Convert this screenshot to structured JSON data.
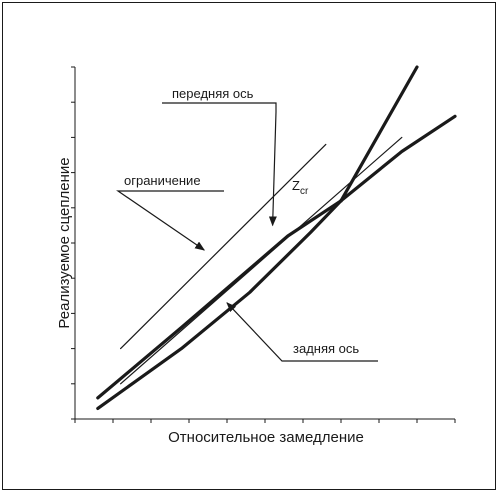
{
  "chart_data": {
    "type": "line",
    "title": "",
    "xlabel": "Относительное замедление",
    "ylabel": "Реализуемое сцепление",
    "xlim": [
      0,
      1
    ],
    "ylim": [
      0,
      1
    ],
    "grid": false,
    "x_tick_count": 10,
    "y_tick_count": 11,
    "series": [
      {
        "id": "front",
        "points": [
          [
            0.06,
            0.06
          ],
          [
            0.28,
            0.26
          ],
          [
            0.56,
            0.52
          ],
          [
            0.7,
            0.62
          ],
          [
            0.86,
            0.76
          ],
          [
            1.0,
            0.86
          ]
        ]
      },
      {
        "id": "rear",
        "points": [
          [
            0.06,
            0.03
          ],
          [
            0.28,
            0.2
          ],
          [
            0.46,
            0.36
          ],
          [
            0.62,
            0.53
          ],
          [
            0.7,
            0.62
          ],
          [
            0.8,
            0.81
          ],
          [
            0.9,
            1.0
          ]
        ]
      },
      {
        "id": "limit",
        "points": [
          [
            0.12,
            0.2
          ],
          [
            0.66,
            0.78
          ]
        ]
      },
      {
        "id": "ideal",
        "points": [
          [
            0.12,
            0.1
          ],
          [
            0.86,
            0.8
          ]
        ]
      }
    ],
    "annotations": {
      "front_axle": "передняя ось",
      "limit": "ограничение",
      "rear_axle": "задняя ось",
      "critical_point": "Z",
      "critical_subscript": "cr"
    },
    "critical_point": [
      0.7,
      0.62
    ]
  }
}
